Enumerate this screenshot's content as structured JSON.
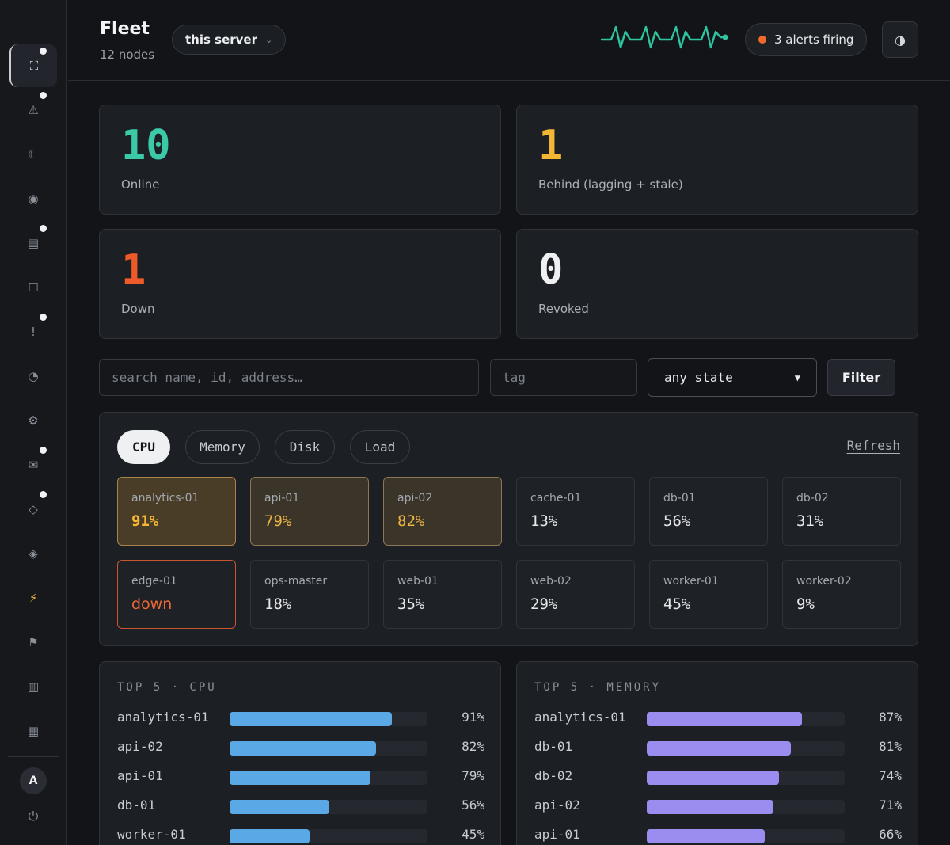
{
  "header": {
    "title": "Fleet",
    "subtitle": "12 nodes",
    "server_selector": "this server",
    "alerts": "3 alerts firing",
    "pulse_color": "#2ec4a0",
    "alert_color": "#f26a2b"
  },
  "sidebar": {
    "items": [
      {
        "icon": "expand-icon",
        "glyph": "⛶",
        "active": true,
        "dot": true
      },
      {
        "icon": "warning-icon",
        "glyph": "⚠",
        "dot": true
      },
      {
        "icon": "moon-icon",
        "glyph": "☾"
      },
      {
        "icon": "record-icon",
        "glyph": "◉"
      },
      {
        "icon": "grid-icon",
        "glyph": "▤",
        "dot": true
      },
      {
        "icon": "square-icon",
        "glyph": "☐"
      },
      {
        "icon": "exclamation-icon",
        "glyph": "!",
        "dot": true
      },
      {
        "icon": "pie-icon",
        "glyph": "◔"
      },
      {
        "icon": "gear-icon",
        "glyph": "⚙"
      },
      {
        "icon": "mail-icon",
        "glyph": "✉",
        "dot": true
      },
      {
        "icon": "diamond-outline-icon",
        "glyph": "◇",
        "dot": true
      },
      {
        "icon": "diamond-icon",
        "glyph": "◈"
      },
      {
        "icon": "bolt-icon",
        "glyph": "⚡"
      },
      {
        "icon": "flag-icon",
        "glyph": "⚑"
      },
      {
        "icon": "table-icon",
        "glyph": "▥"
      },
      {
        "icon": "grid-dense-icon",
        "glyph": "▦"
      }
    ],
    "avatar": "A",
    "power_glyph": "⏻"
  },
  "stats": [
    {
      "value": "10",
      "label": "Online",
      "color": "#3cc9a7"
    },
    {
      "value": "1",
      "label": "Behind (lagging + stale)",
      "color": "#f2b534"
    },
    {
      "value": "1",
      "label": "Down",
      "color": "#ef5a2a"
    },
    {
      "value": "0",
      "label": "Revoked",
      "color": "#eef0f2"
    }
  ],
  "filters": {
    "search_placeholder": "search name, id, address…",
    "tag_placeholder": "tag",
    "state_value": "any state",
    "filter_label": "Filter"
  },
  "metrics": {
    "tabs": [
      "CPU",
      "Memory",
      "Disk",
      "Load"
    ],
    "active_tab": "CPU",
    "refresh_label": "Refresh",
    "nodes": [
      {
        "name": "analytics-01",
        "value": "91%",
        "state": "hot-strong"
      },
      {
        "name": "api-01",
        "value": "79%",
        "state": "hot"
      },
      {
        "name": "api-02",
        "value": "82%",
        "state": "hot"
      },
      {
        "name": "cache-01",
        "value": "13%",
        "state": "normal"
      },
      {
        "name": "db-01",
        "value": "56%",
        "state": "normal"
      },
      {
        "name": "db-02",
        "value": "31%",
        "state": "normal"
      },
      {
        "name": "edge-01",
        "value": "down",
        "state": "down"
      },
      {
        "name": "ops-master",
        "value": "18%",
        "state": "normal"
      },
      {
        "name": "web-01",
        "value": "35%",
        "state": "normal"
      },
      {
        "name": "web-02",
        "value": "29%",
        "state": "normal"
      },
      {
        "name": "worker-01",
        "value": "45%",
        "state": "normal"
      },
      {
        "name": "worker-02",
        "value": "9%",
        "state": "normal"
      }
    ]
  },
  "top_cpu": {
    "title": "TOP 5 · CPU",
    "color": "#5aa9e6",
    "rows": [
      {
        "name": "analytics-01",
        "value": "91%",
        "pct": 91
      },
      {
        "name": "api-02",
        "value": "82%",
        "pct": 82
      },
      {
        "name": "api-01",
        "value": "79%",
        "pct": 79
      },
      {
        "name": "db-01",
        "value": "56%",
        "pct": 56
      },
      {
        "name": "worker-01",
        "value": "45%",
        "pct": 45
      }
    ]
  },
  "top_memory": {
    "title": "TOP 5 · MEMORY",
    "color": "#9b8cf0",
    "rows": [
      {
        "name": "analytics-01",
        "value": "87%",
        "pct": 87
      },
      {
        "name": "db-01",
        "value": "81%",
        "pct": 81
      },
      {
        "name": "db-02",
        "value": "74%",
        "pct": 74
      },
      {
        "name": "api-02",
        "value": "71%",
        "pct": 71
      },
      {
        "name": "api-01",
        "value": "66%",
        "pct": 66
      }
    ]
  }
}
